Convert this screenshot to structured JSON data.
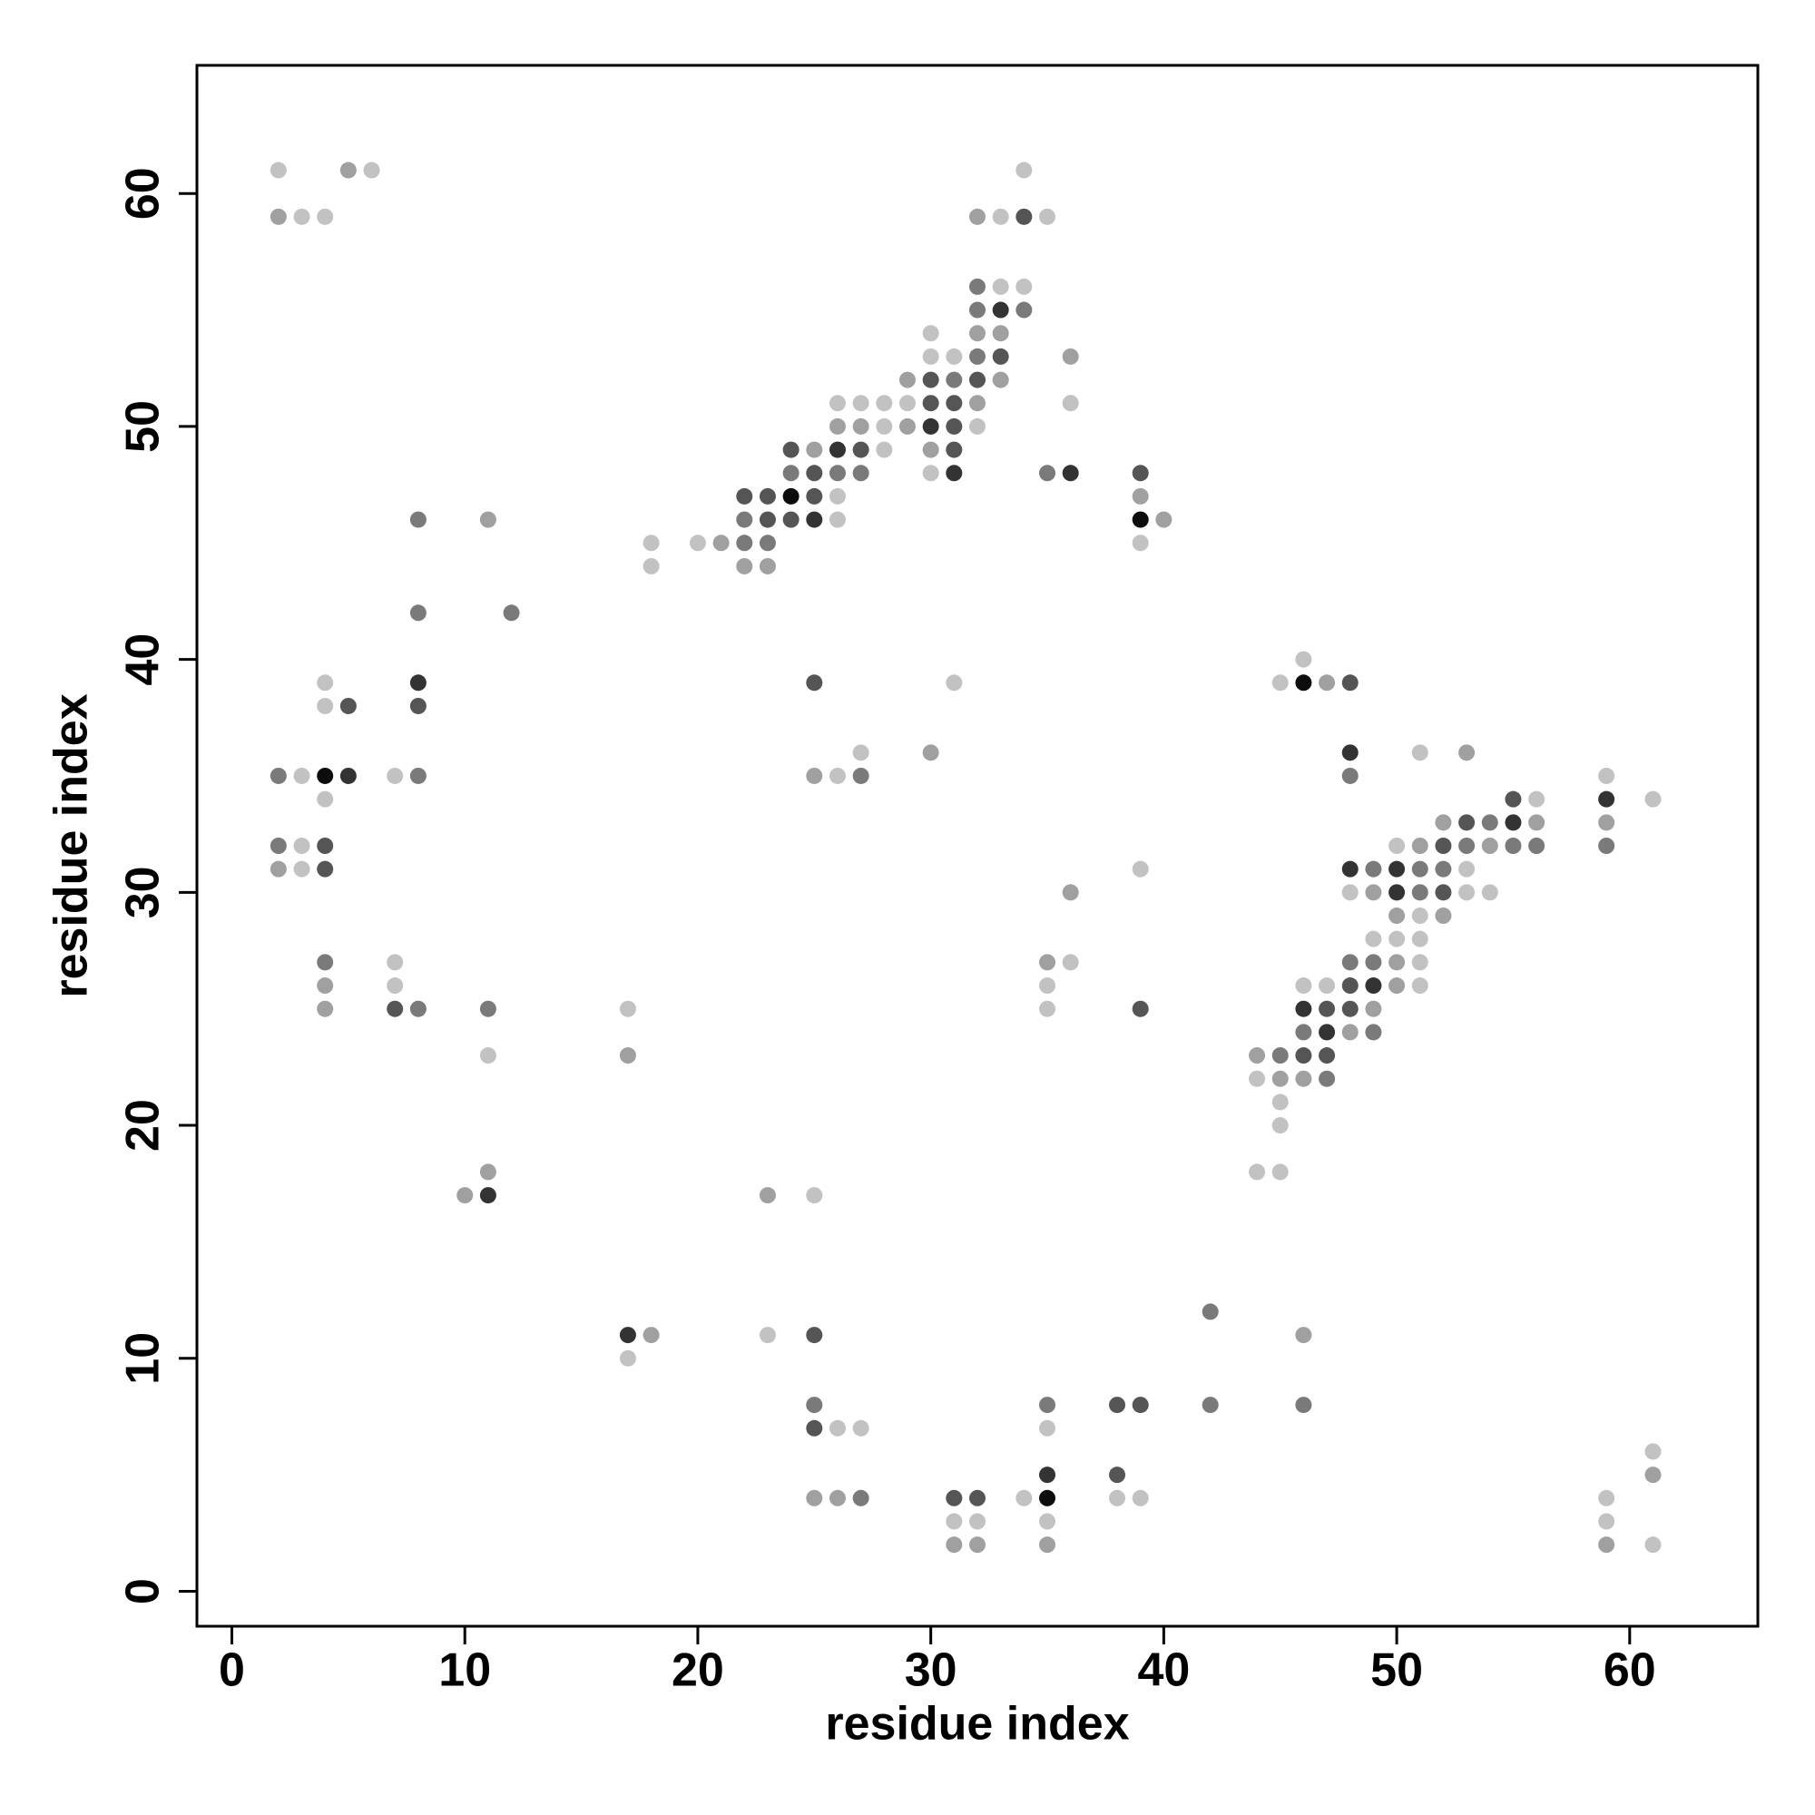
{
  "chart_data": {
    "type": "scatter",
    "x_label": "residue index",
    "y_label": "residue index",
    "xlim": [
      -1.5,
      65.5
    ],
    "ylim": [
      -1.5,
      65.5
    ],
    "xticks": [
      0,
      10,
      20,
      30,
      40,
      50,
      60
    ],
    "yticks": [
      0,
      10,
      20,
      30,
      40,
      50,
      60
    ],
    "x": [
      2,
      5,
      6,
      34,
      2,
      3,
      4,
      32,
      33,
      34,
      35,
      32,
      33,
      34,
      32,
      33,
      34,
      30,
      32,
      33,
      30,
      31,
      32,
      33,
      36,
      29,
      30,
      31,
      32,
      33,
      26,
      27,
      28,
      29,
      30,
      31,
      32,
      36,
      26,
      27,
      28,
      29,
      30,
      31,
      32,
      24,
      25,
      26,
      27,
      28,
      30,
      31,
      24,
      25,
      26,
      27,
      30,
      31,
      35,
      36,
      39,
      22,
      23,
      24,
      25,
      26,
      39,
      8,
      11,
      22,
      23,
      24,
      25,
      26,
      39,
      40,
      18,
      20,
      21,
      22,
      23,
      39,
      18,
      22,
      23,
      8,
      12,
      46,
      4,
      8,
      25,
      31,
      45,
      46,
      47,
      48,
      4,
      5,
      8,
      27,
      30,
      48,
      51,
      53,
      2,
      3,
      4,
      5,
      7,
      8,
      25,
      26,
      27,
      48,
      59,
      4,
      55,
      56,
      59,
      61,
      52,
      53,
      54,
      55,
      56,
      59,
      2,
      3,
      4,
      50,
      51,
      52,
      53,
      54,
      55,
      56,
      59,
      2,
      3,
      4,
      39,
      48,
      49,
      50,
      51,
      52,
      53,
      36,
      48,
      49,
      50,
      51,
      52,
      53,
      54,
      50,
      51,
      52,
      49,
      50,
      51,
      4,
      7,
      35,
      36,
      48,
      49,
      50,
      51,
      4,
      7,
      35,
      46,
      47,
      48,
      49,
      50,
      51,
      4,
      7,
      8,
      11,
      17,
      35,
      39,
      46,
      47,
      48,
      49,
      46,
      47,
      48,
      49,
      11,
      17,
      44,
      45,
      46,
      47,
      44,
      45,
      46,
      47,
      45,
      45,
      11,
      44,
      45,
      10,
      11,
      23,
      25,
      42,
      17,
      18,
      23,
      25,
      46,
      17,
      25,
      35,
      38,
      39,
      42,
      46,
      25,
      26,
      27,
      35,
      61,
      35,
      38,
      61,
      25,
      26,
      27,
      31,
      32,
      34,
      35,
      38,
      39,
      59,
      31,
      32,
      35,
      59,
      31,
      32,
      35,
      59,
      61
    ],
    "y": [
      61,
      61,
      61,
      61,
      59,
      59,
      59,
      59,
      59,
      59,
      59,
      56,
      56,
      56,
      55,
      55,
      55,
      54,
      54,
      54,
      53,
      53,
      53,
      53,
      53,
      52,
      52,
      52,
      52,
      52,
      51,
      51,
      51,
      51,
      51,
      51,
      51,
      51,
      50,
      50,
      50,
      50,
      50,
      50,
      50,
      49,
      49,
      49,
      49,
      49,
      49,
      49,
      48,
      48,
      48,
      48,
      48,
      48,
      48,
      48,
      48,
      47,
      47,
      47,
      47,
      47,
      47,
      46,
      46,
      46,
      46,
      46,
      46,
      46,
      46,
      46,
      45,
      45,
      45,
      45,
      45,
      45,
      44,
      44,
      44,
      42,
      42,
      40,
      39,
      39,
      39,
      39,
      39,
      39,
      39,
      39,
      38,
      38,
      38,
      36,
      36,
      36,
      36,
      36,
      35,
      35,
      35,
      35,
      35,
      35,
      35,
      35,
      35,
      35,
      35,
      34,
      34,
      34,
      34,
      34,
      33,
      33,
      33,
      33,
      33,
      33,
      32,
      32,
      32,
      32,
      32,
      32,
      32,
      32,
      32,
      32,
      32,
      31,
      31,
      31,
      31,
      31,
      31,
      31,
      31,
      31,
      31,
      30,
      30,
      30,
      30,
      30,
      30,
      30,
      30,
      29,
      29,
      29,
      28,
      28,
      28,
      27,
      27,
      27,
      27,
      27,
      27,
      27,
      27,
      26,
      26,
      26,
      26,
      26,
      26,
      26,
      26,
      26,
      25,
      25,
      25,
      25,
      25,
      25,
      25,
      25,
      25,
      25,
      25,
      24,
      24,
      24,
      24,
      23,
      23,
      23,
      23,
      23,
      23,
      22,
      22,
      22,
      22,
      21,
      20,
      18,
      18,
      18,
      17,
      17,
      17,
      17,
      12,
      11,
      11,
      11,
      11,
      11,
      10,
      8,
      8,
      8,
      8,
      8,
      8,
      7,
      7,
      7,
      7,
      6,
      5,
      5,
      5,
      4,
      4,
      4,
      4,
      4,
      4,
      4,
      4,
      4,
      4,
      3,
      3,
      3,
      3,
      2,
      2,
      2,
      2,
      2
    ],
    "colors": [
      "#c2c2c2",
      "#a0a0a0",
      "#c2c2c2",
      "#c2c2c2",
      "#a0a0a0",
      "#c2c2c2",
      "#c2c2c2",
      "#a0a0a0",
      "#c2c2c2",
      "#555555",
      "#c2c2c2",
      "#7a7a7a",
      "#c2c2c2",
      "#c2c2c2",
      "#7a7a7a",
      "#333333",
      "#7a7a7a",
      "#c2c2c2",
      "#a0a0a0",
      "#a0a0a0",
      "#c2c2c2",
      "#c2c2c2",
      "#7a7a7a",
      "#555555",
      "#a0a0a0",
      "#a0a0a0",
      "#555555",
      "#7a7a7a",
      "#555555",
      "#a0a0a0",
      "#c2c2c2",
      "#c2c2c2",
      "#c2c2c2",
      "#c2c2c2",
      "#555555",
      "#555555",
      "#a0a0a0",
      "#c2c2c2",
      "#a0a0a0",
      "#a0a0a0",
      "#c2c2c2",
      "#a0a0a0",
      "#333333",
      "#555555",
      "#c2c2c2",
      "#555555",
      "#a0a0a0",
      "#333333",
      "#555555",
      "#c2c2c2",
      "#a0a0a0",
      "#555555",
      "#7a7a7a",
      "#555555",
      "#7a7a7a",
      "#7a7a7a",
      "#c2c2c2",
      "#333333",
      "#7a7a7a",
      "#333333",
      "#555555",
      "#555555",
      "#555555",
      "#0d0d0d",
      "#555555",
      "#c2c2c2",
      "#a0a0a0",
      "#7a7a7a",
      "#a0a0a0",
      "#7a7a7a",
      "#555555",
      "#555555",
      "#333333",
      "#c2c2c2",
      "#0d0d0d",
      "#a0a0a0",
      "#c2c2c2",
      "#c2c2c2",
      "#a0a0a0",
      "#7a7a7a",
      "#7a7a7a",
      "#c2c2c2",
      "#c2c2c2",
      "#a0a0a0",
      "#a0a0a0",
      "#7a7a7a",
      "#7a7a7a",
      "#c2c2c2",
      "#c2c2c2",
      "#333333",
      "#555555",
      "#c2c2c2",
      "#c2c2c2",
      "#0d0d0d",
      "#a0a0a0",
      "#555555",
      "#c2c2c2",
      "#555555",
      "#555555",
      "#c2c2c2",
      "#a0a0a0",
      "#333333",
      "#c2c2c2",
      "#a0a0a0",
      "#7a7a7a",
      "#c2c2c2",
      "#0d0d0d",
      "#333333",
      "#c2c2c2",
      "#7a7a7a",
      "#a0a0a0",
      "#c2c2c2",
      "#7a7a7a",
      "#7a7a7a",
      "#c2c2c2",
      "#c2c2c2",
      "#555555",
      "#c2c2c2",
      "#333333",
      "#c2c2c2",
      "#a0a0a0",
      "#555555",
      "#7a7a7a",
      "#333333",
      "#a0a0a0",
      "#a0a0a0",
      "#7a7a7a",
      "#c2c2c2",
      "#555555",
      "#c2c2c2",
      "#a0a0a0",
      "#555555",
      "#7a7a7a",
      "#a0a0a0",
      "#7a7a7a",
      "#7a7a7a",
      "#7a7a7a",
      "#a0a0a0",
      "#c2c2c2",
      "#555555",
      "#c2c2c2",
      "#333333",
      "#7a7a7a",
      "#333333",
      "#7a7a7a",
      "#7a7a7a",
      "#c2c2c2",
      "#a0a0a0",
      "#c2c2c2",
      "#a0a0a0",
      "#333333",
      "#7a7a7a",
      "#555555",
      "#c2c2c2",
      "#c2c2c2",
      "#a0a0a0",
      "#c2c2c2",
      "#a0a0a0",
      "#c2c2c2",
      "#c2c2c2",
      "#c2c2c2",
      "#7a7a7a",
      "#c2c2c2",
      "#a0a0a0",
      "#c2c2c2",
      "#7a7a7a",
      "#7a7a7a",
      "#a0a0a0",
      "#c2c2c2",
      "#a0a0a0",
      "#c2c2c2",
      "#c2c2c2",
      "#c2c2c2",
      "#c2c2c2",
      "#555555",
      "#333333",
      "#a0a0a0",
      "#c2c2c2",
      "#a0a0a0",
      "#555555",
      "#7a7a7a",
      "#7a7a7a",
      "#c2c2c2",
      "#c2c2c2",
      "#555555",
      "#333333",
      "#555555",
      "#555555",
      "#a0a0a0",
      "#7a7a7a",
      "#333333",
      "#a0a0a0",
      "#7a7a7a",
      "#c2c2c2",
      "#a0a0a0",
      "#a0a0a0",
      "#7a7a7a",
      "#555555",
      "#555555",
      "#c2c2c2",
      "#a0a0a0",
      "#a0a0a0",
      "#7a7a7a",
      "#c2c2c2",
      "#c2c2c2",
      "#a0a0a0",
      "#c2c2c2",
      "#c2c2c2",
      "#a0a0a0",
      "#333333",
      "#a0a0a0",
      "#c2c2c2",
      "#7a7a7a",
      "#333333",
      "#a0a0a0",
      "#c2c2c2",
      "#555555",
      "#a0a0a0",
      "#c2c2c2",
      "#7a7a7a",
      "#7a7a7a",
      "#555555",
      "#555555",
      "#7a7a7a",
      "#7a7a7a",
      "#555555",
      "#c2c2c2",
      "#c2c2c2",
      "#c2c2c2",
      "#c2c2c2",
      "#333333",
      "#555555",
      "#a0a0a0",
      "#a0a0a0",
      "#a0a0a0",
      "#7a7a7a",
      "#555555",
      "#555555",
      "#c2c2c2",
      "#0d0d0d",
      "#c2c2c2",
      "#c2c2c2",
      "#c2c2c2",
      "#c2c2c2",
      "#c2c2c2",
      "#c2c2c2",
      "#c2c2c2",
      "#a0a0a0",
      "#a0a0a0",
      "#a0a0a0",
      "#a0a0a0",
      "#c2c2c2"
    ]
  }
}
